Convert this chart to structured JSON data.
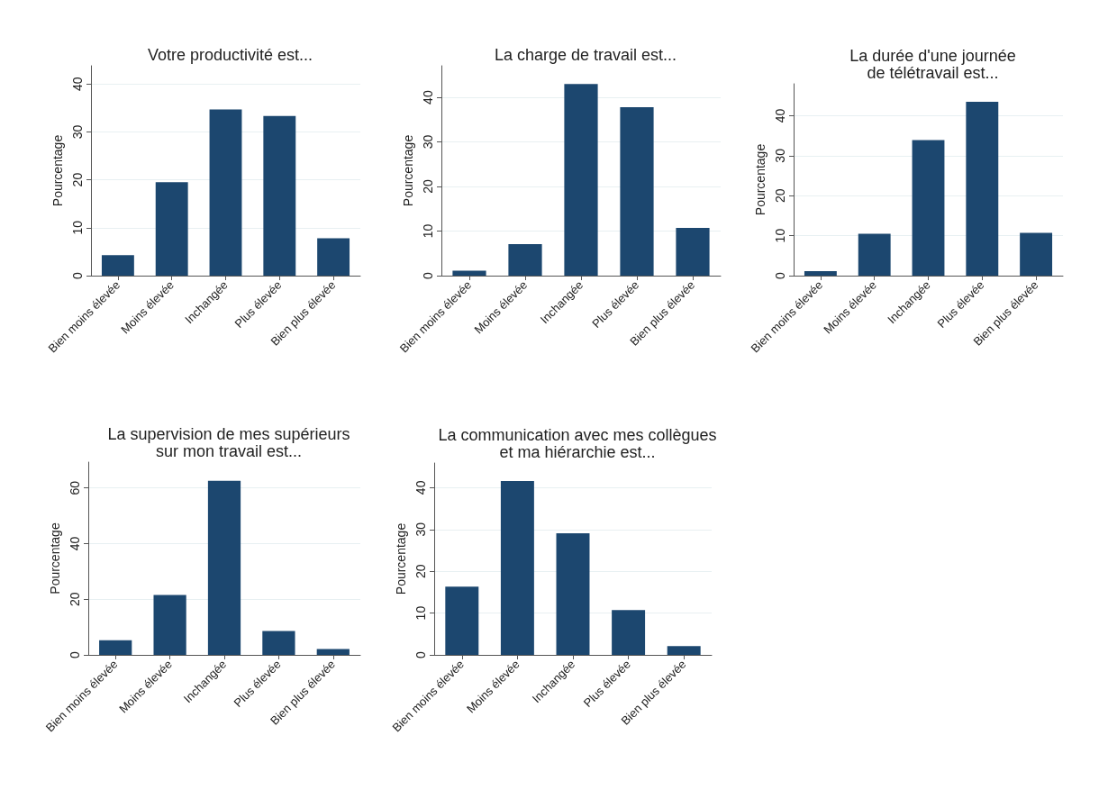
{
  "chart_data": [
    {
      "type": "bar",
      "title": "Votre productivité est...",
      "ylabel": "Pourcentage",
      "categories": [
        "Bien moins élevée",
        "Moins élevée",
        "Inchangée",
        "Plus élevée",
        "Bien plus élevée"
      ],
      "values": [
        4.3,
        19.5,
        34.7,
        33.3,
        7.8
      ],
      "color": "#1c476f",
      "ylim": [
        0,
        43.8
      ],
      "yticks": [
        0,
        10,
        20,
        30,
        40
      ],
      "grid": "y"
    },
    {
      "type": "bar",
      "title": "La charge de travail est...",
      "ylabel": "Pourcentage",
      "categories": [
        "Bien moins élevée",
        "Moins élevée",
        "Inchangée",
        "Plus élevée",
        "Bien plus élevée"
      ],
      "values": [
        1.1,
        7.1,
        43.0,
        37.8,
        10.7
      ],
      "color": "#1c476f",
      "ylim": [
        0,
        47.1
      ],
      "yticks": [
        0,
        10,
        20,
        30,
        40
      ],
      "grid": "y"
    },
    {
      "type": "bar",
      "title": "La durée d'une journée\nde télétravail est...",
      "ylabel": "Pourcentage",
      "categories": [
        "Bien moins élevée",
        "Moins élevée",
        "Inchangée",
        "Plus élevée",
        "Bien plus élevée"
      ],
      "values": [
        1.1,
        10.5,
        33.9,
        43.5,
        10.7
      ],
      "color": "#1c476f",
      "ylim": [
        0,
        48
      ],
      "yticks": [
        0,
        10,
        20,
        30,
        40
      ],
      "grid": "y"
    },
    {
      "type": "bar",
      "title": "La supervision de mes supérieurs\nsur mon travail est...",
      "ylabel": "Pourcentage",
      "categories": [
        "Bien moins élevée",
        "Moins élevée",
        "Inchangée",
        "Plus élevée",
        "Bien plus élevée"
      ],
      "values": [
        5.3,
        21.5,
        62.6,
        8.6,
        2.1
      ],
      "color": "#1c476f",
      "ylim": [
        0,
        69.3
      ],
      "yticks": [
        0,
        20,
        40,
        60
      ],
      "grid": "y"
    },
    {
      "type": "bar",
      "title": "La communication avec mes collègues\net ma hiérarchie est...",
      "ylabel": "Pourcentage",
      "categories": [
        "Bien moins élevée",
        "Moins élevée",
        "Inchangée",
        "Plus élevée",
        "Bien plus élevée"
      ],
      "values": [
        16.3,
        41.6,
        29.1,
        10.7,
        2.1
      ],
      "color": "#1c476f",
      "ylim": [
        0,
        45.9
      ],
      "yticks": [
        0,
        10,
        20,
        30,
        40
      ],
      "grid": "y"
    }
  ]
}
